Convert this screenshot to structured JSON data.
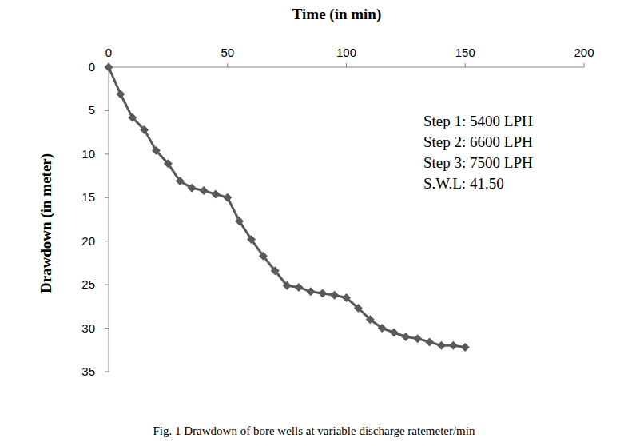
{
  "chart_data": {
    "type": "line",
    "title": "Fig. 1 Drawdown of bore wells at variable discharge ratemeter/min",
    "x_label": "Time (in min)",
    "y_label": "Drawdown (in meter)",
    "annotations": [
      "Step 1: 5400 LPH",
      "Step 2: 6600 LPH",
      "Step 3: 7500 LPH",
      "S.W.L: 41.50"
    ],
    "x": [
      0,
      5,
      10,
      15,
      20,
      25,
      30,
      35,
      40,
      45,
      50,
      55,
      60,
      65,
      70,
      75,
      80,
      85,
      90,
      95,
      100,
      105,
      110,
      115,
      120,
      125,
      130,
      135,
      140,
      145,
      150
    ],
    "series": [
      {
        "name": "Drawdown",
        "color": "#595959",
        "marker": "diamond",
        "line_style": "solid",
        "values": [
          0,
          3.1,
          5.8,
          7.2,
          9.6,
          11.1,
          13.1,
          13.9,
          14.2,
          14.6,
          15.0,
          17.7,
          19.8,
          21.7,
          23.4,
          25.1,
          25.3,
          25.8,
          26.0,
          26.2,
          26.5,
          27.7,
          29.0,
          30.0,
          30.5,
          31.0,
          31.2,
          31.6,
          32.0,
          32.0,
          32.2
        ]
      }
    ],
    "xlim": [
      0,
      200
    ],
    "xticks": [
      0,
      50,
      100,
      150,
      200
    ],
    "ylim": [
      0,
      35
    ],
    "yticks": [
      0,
      5,
      10,
      15,
      20,
      25,
      30,
      35
    ],
    "grid": false
  }
}
